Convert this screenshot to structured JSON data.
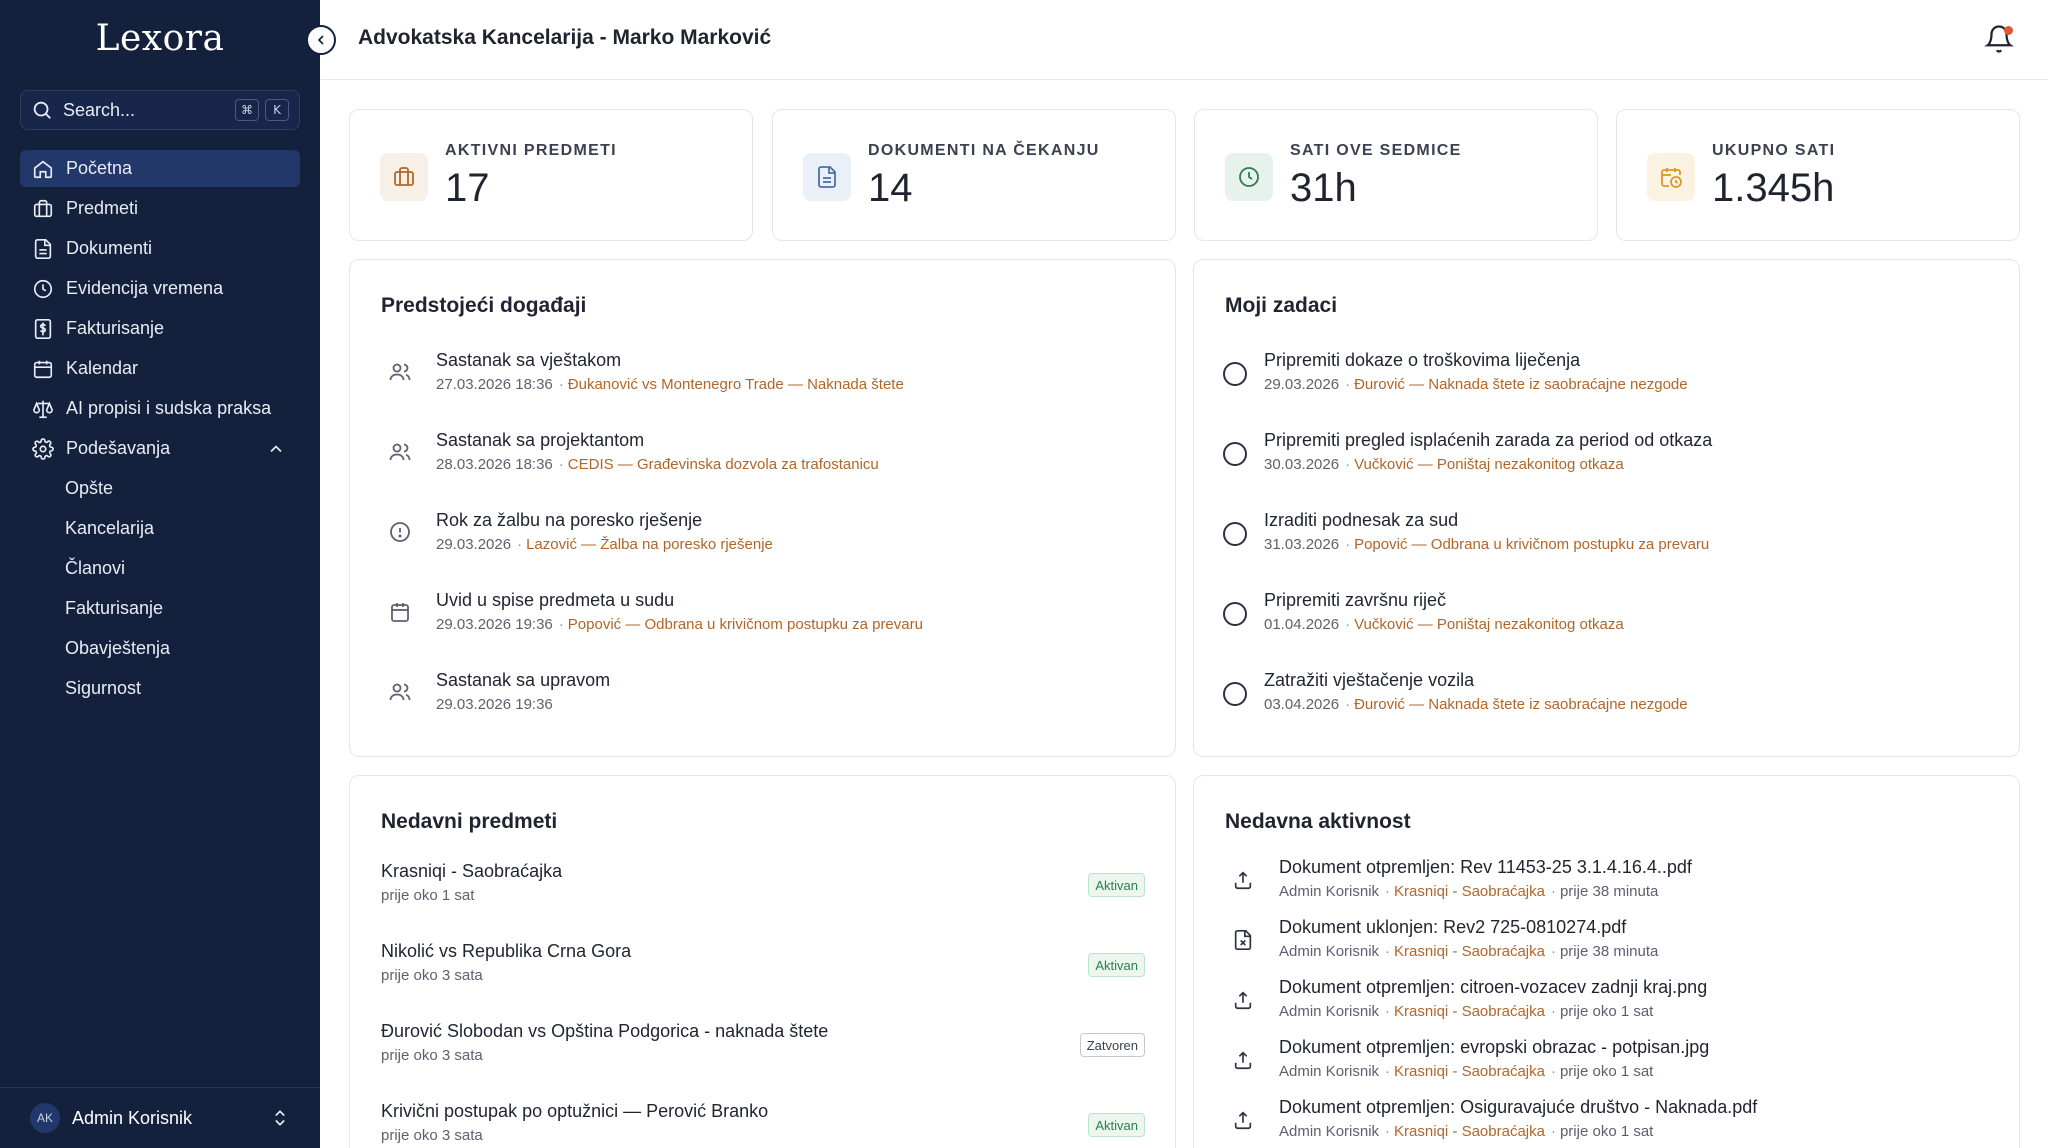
{
  "app": {
    "logo": "Lexora",
    "search_placeholder": "Search...",
    "shortcut": [
      "⌘",
      "K"
    ]
  },
  "sidebar": {
    "items": [
      {
        "label": "Početna",
        "icon": "home-icon",
        "active": true
      },
      {
        "label": "Predmeti",
        "icon": "briefcase-icon"
      },
      {
        "label": "Dokumenti",
        "icon": "document-icon"
      },
      {
        "label": "Evidencija vremena",
        "icon": "clock-icon"
      },
      {
        "label": "Fakturisanje",
        "icon": "invoice-icon"
      },
      {
        "label": "Kalendar",
        "icon": "calendar-icon"
      },
      {
        "label": "AI propisi i sudska praksa",
        "icon": "scale-icon"
      },
      {
        "label": "Podešavanja",
        "icon": "gear-icon",
        "expanded": true
      }
    ],
    "sub_items": [
      "Opšte",
      "Kancelarija",
      "Članovi",
      "Fakturisanje",
      "Obavještenja",
      "Sigurnost"
    ],
    "user": {
      "initials": "AK",
      "name": "Admin Korisnik"
    }
  },
  "header": {
    "title": "Advokatska Kancelarija - Marko Marković"
  },
  "stats": [
    {
      "label": "AKTIVNI PREDMETI",
      "value": "17",
      "icon": "briefcase-icon",
      "color": "#b0662a",
      "bg": "#f8efe6"
    },
    {
      "label": "DOKUMENTI NA ČEKANJU",
      "value": "14",
      "icon": "document-icon",
      "color": "#4a6fa5",
      "bg": "#eaf0f8"
    },
    {
      "label": "SATI OVE SEDMICE",
      "value": "31h",
      "icon": "clock-icon",
      "color": "#2e7d4f",
      "bg": "#e8f2ec"
    },
    {
      "label": "UKUPNO SATI",
      "value": "1.345h",
      "icon": "calendar-clock-icon",
      "color": "#d99a2b",
      "bg": "#fbf2e1"
    }
  ],
  "events": {
    "title": "Predstojeći događaji",
    "items": [
      {
        "title": "Sastanak sa vještakom",
        "date": "27.03.2026 18:36",
        "ref": "Đukanović vs Montenegro Trade — Naknada štete",
        "icon": "users-icon"
      },
      {
        "title": "Sastanak sa projektantom",
        "date": "28.03.2026 18:36",
        "ref": "CEDIS — Građevinska dozvola za trafostanicu",
        "icon": "users-icon"
      },
      {
        "title": "Rok za žalbu na poresko rješenje",
        "date": "29.03.2026",
        "ref": "Lazović — Žalba na poresko rješenje",
        "icon": "alert-circle-icon"
      },
      {
        "title": "Uvid u spise predmeta u sudu",
        "date": "29.03.2026 19:36",
        "ref": "Popović — Odbrana u krivičnom postupku za prevaru",
        "icon": "calendar-icon"
      },
      {
        "title": "Sastanak sa upravom",
        "date": "29.03.2026 19:36",
        "ref": "",
        "icon": "users-icon"
      }
    ]
  },
  "tasks": {
    "title": "Moji zadaci",
    "items": [
      {
        "title": "Pripremiti dokaze o troškovima liječenja",
        "date": "29.03.2026",
        "ref": "Đurović — Naknada štete iz saobraćajne nezgode"
      },
      {
        "title": "Pripremiti pregled isplaćenih zarada za period od otkaza",
        "date": "30.03.2026",
        "ref": "Vučković — Poništaj nezakonitog otkaza"
      },
      {
        "title": "Izraditi podnesak za sud",
        "date": "31.03.2026",
        "ref": "Popović — Odbrana u krivičnom postupku za prevaru"
      },
      {
        "title": "Pripremiti završnu riječ",
        "date": "01.04.2026",
        "ref": "Vučković — Poništaj nezakonitog otkaza"
      },
      {
        "title": "Zatražiti vještačenje vozila",
        "date": "03.04.2026",
        "ref": "Đurović — Naknada štete iz saobraćajne nezgode"
      }
    ]
  },
  "recent_cases": {
    "title": "Nedavni predmeti",
    "items": [
      {
        "title": "Krasniqi - Saobraćajka",
        "time": "prije oko 1 sat",
        "status": "Aktivan",
        "status_type": "active"
      },
      {
        "title": "Nikolić vs Republika Crna Gora",
        "time": "prije oko 3 sata",
        "status": "Aktivan",
        "status_type": "active"
      },
      {
        "title": "Đurović Slobodan vs Opština Podgorica - naknada štete",
        "time": "prije oko 3 sata",
        "status": "Zatvoren",
        "status_type": "closed"
      },
      {
        "title": "Krivični postupak po optužnici — Perović Branko",
        "time": "prije oko 3 sata",
        "status": "Aktivan",
        "status_type": "active"
      }
    ]
  },
  "activity": {
    "title": "Nedavna aktivnost",
    "items": [
      {
        "title": "Dokument otpremljen: Rev 11453-25 3.1.4.16.4..pdf",
        "user": "Admin Korisnik",
        "ref": "Krasniqi - Saobraćajka",
        "time": "prije 38 minuta",
        "icon": "upload-icon"
      },
      {
        "title": "Dokument uklonjen: Rev2 725-0810274.pdf",
        "user": "Admin Korisnik",
        "ref": "Krasniqi - Saobraćajka",
        "time": "prije 38 minuta",
        "icon": "file-x-icon"
      },
      {
        "title": "Dokument otpremljen: citroen-vozacev zadnji kraj.png",
        "user": "Admin Korisnik",
        "ref": "Krasniqi - Saobraćajka",
        "time": "prije oko 1 sat",
        "icon": "upload-icon"
      },
      {
        "title": "Dokument otpremljen: evropski obrazac - potpisan.jpg",
        "user": "Admin Korisnik",
        "ref": "Krasniqi - Saobraćajka",
        "time": "prije oko 1 sat",
        "icon": "upload-icon"
      },
      {
        "title": "Dokument otpremljen: Osiguravajuće društvo - Naknada.pdf",
        "user": "Admin Korisnik",
        "ref": "Krasniqi - Saobraćajka",
        "time": "prije oko 1 sat",
        "icon": "upload-icon"
      }
    ]
  }
}
